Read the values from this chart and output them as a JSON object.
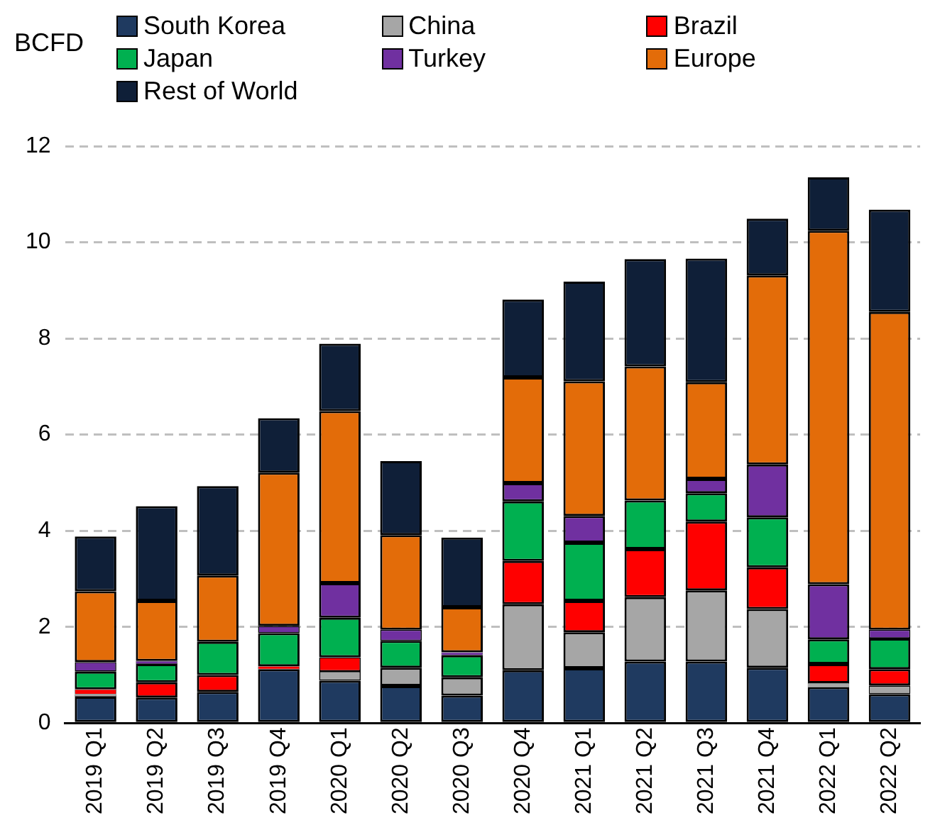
{
  "chart_data": {
    "type": "bar",
    "stacked": true,
    "ylabel": "BCFD",
    "categories": [
      "2019 Q1",
      "2019 Q2",
      "2019 Q3",
      "2019 Q4",
      "2020 Q1",
      "2020 Q2",
      "2020 Q3",
      "2020 Q4",
      "2021 Q1",
      "2021 Q2",
      "2021 Q3",
      "2021 Q4",
      "2022 Q1",
      "2022 Q2"
    ],
    "series": [
      {
        "name": "South Korea",
        "color": "#1f3a60",
        "values": [
          0.55,
          0.53,
          0.65,
          1.12,
          0.88,
          0.77,
          0.57,
          1.1,
          1.14,
          1.28,
          1.28,
          1.15,
          0.75,
          0.6
        ]
      },
      {
        "name": "China",
        "color": "#a6a6a6",
        "values": [
          0.05,
          0,
          0,
          0,
          0.2,
          0.38,
          0.38,
          1.37,
          0.75,
          1.34,
          1.48,
          1.22,
          0.08,
          0.18
        ]
      },
      {
        "name": "Brazil",
        "color": "#ff0000",
        "values": [
          0.1,
          0.32,
          0.35,
          0.06,
          0.29,
          0,
          0,
          0.9,
          0.65,
          1.0,
          1.43,
          0.87,
          0.4,
          0.34
        ]
      },
      {
        "name": "Japan",
        "color": "#00b050",
        "values": [
          0.37,
          0.38,
          0.69,
          0.69,
          0.82,
          0.56,
          0.46,
          1.24,
          1.21,
          1.01,
          0.59,
          1.04,
          0.51,
          0.64
        ]
      },
      {
        "name": "Turkey",
        "color": "#7030a0",
        "values": [
          0.2,
          0.06,
          0,
          0.15,
          0.72,
          0.23,
          0.06,
          0.38,
          0.56,
          0,
          0.3,
          1.1,
          1.15,
          0.18
        ]
      },
      {
        "name": "Europe",
        "color": "#e36c09",
        "values": [
          1.47,
          1.25,
          1.38,
          3.19,
          3.58,
          1.97,
          0.94,
          2.2,
          2.8,
          2.79,
          2.01,
          3.93,
          7.35,
          6.61
        ]
      },
      {
        "name": "Rest of World",
        "color": "#0f1f38",
        "values": [
          1.14,
          1.97,
          1.86,
          1.13,
          1.4,
          1.54,
          1.45,
          1.62,
          2.07,
          2.23,
          2.57,
          1.18,
          1.11,
          2.13
        ]
      }
    ],
    "ylim": [
      0,
      12
    ],
    "yticks": [
      0,
      2,
      4,
      6,
      8,
      10,
      12
    ],
    "grid": "y",
    "legend": "top"
  }
}
